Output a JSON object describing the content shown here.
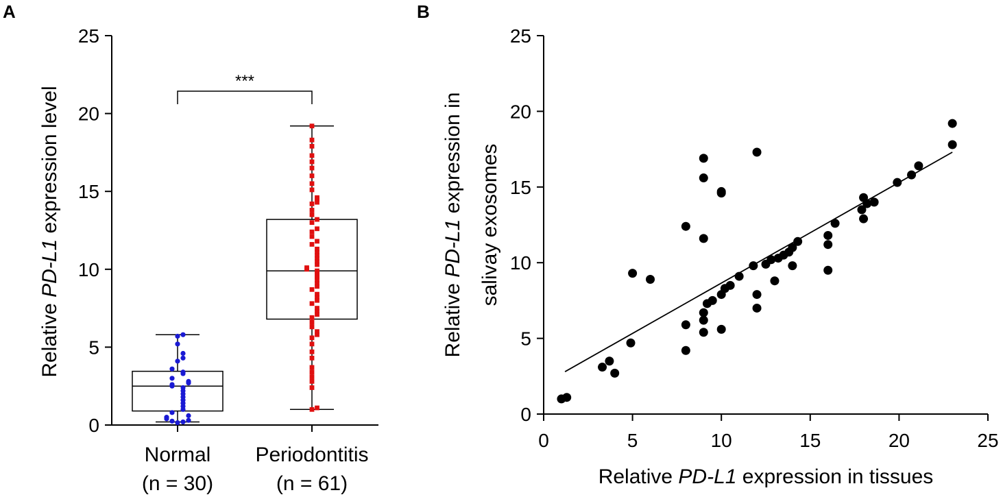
{
  "chart_data": [
    {
      "panel": "A",
      "type": "scatter",
      "subtype": "box-and-dot-plot",
      "ylabel_parts": [
        "Relative ",
        "PD-L1",
        " expression level"
      ],
      "ylim": [
        0,
        25
      ],
      "yticks": [
        "0",
        "5",
        "10",
        "15",
        "20",
        "25"
      ],
      "categories": [
        {
          "label": "Normal",
          "n_label": "(n = 30)"
        },
        {
          "label": "Periodontitis",
          "n_label": "(n = 61)"
        }
      ],
      "significance": "***",
      "groups": [
        {
          "name": "Normal",
          "color": "#1a1ad4",
          "marker": "circle",
          "box": {
            "min": 0.2,
            "q1": 0.9,
            "median": 2.5,
            "q3": 3.45,
            "max": 5.8
          },
          "points": [
            5.8,
            5.7,
            5.2,
            4.6,
            4.3,
            4.1,
            3.6,
            3.4,
            3.3,
            3.0,
            2.8,
            2.7,
            2.6,
            2.5,
            2.4,
            2.2,
            2.0,
            1.8,
            1.6,
            1.4,
            1.2,
            1.0,
            0.8,
            0.6,
            0.5,
            0.4,
            0.3,
            0.25,
            0.2,
            0.15
          ]
        },
        {
          "name": "Periodontitis",
          "color": "#e01010",
          "marker": "square",
          "box": {
            "min": 1.0,
            "q1": 6.8,
            "median": 9.9,
            "q3": 13.2,
            "max": 19.2
          },
          "points": [
            19.2,
            18.3,
            17.9,
            17.3,
            16.9,
            16.5,
            16.0,
            15.5,
            15.1,
            14.6,
            14.5,
            14.3,
            14.2,
            13.8,
            13.5,
            13.2,
            13.0,
            12.6,
            12.4,
            12.1,
            11.8,
            11.6,
            11.3,
            11.1,
            10.9,
            10.7,
            10.5,
            10.3,
            10.1,
            10.0,
            9.9,
            9.8,
            9.6,
            9.5,
            9.3,
            9.1,
            8.9,
            8.7,
            8.4,
            8.2,
            8.0,
            7.8,
            7.5,
            7.3,
            7.1,
            6.9,
            6.6,
            6.3,
            6.0,
            5.8,
            5.6,
            5.2,
            4.7,
            4.3,
            3.7,
            3.4,
            3.1,
            2.8,
            2.4,
            1.1,
            1.0
          ]
        }
      ]
    },
    {
      "panel": "B",
      "type": "scatter",
      "xlabel_parts": [
        "Relative ",
        "PD-L1",
        " expression in tissues"
      ],
      "ylabel_line1_parts": [
        "Relative ",
        "PD-L1",
        " expression in"
      ],
      "ylabel_line2": "salivay exosomes",
      "xlim": [
        0,
        25
      ],
      "ylim": [
        0,
        25
      ],
      "xticks": [
        "0",
        "5",
        "10",
        "15",
        "20",
        "25"
      ],
      "yticks": [
        "0",
        "5",
        "10",
        "15",
        "20",
        "25"
      ],
      "marker_color": "#000000",
      "points": [
        [
          1.0,
          1.0
        ],
        [
          1.3,
          1.1
        ],
        [
          3.3,
          3.1
        ],
        [
          3.7,
          3.5
        ],
        [
          4.0,
          2.7
        ],
        [
          4.9,
          4.7
        ],
        [
          5.0,
          9.3
        ],
        [
          6.0,
          8.9
        ],
        [
          8.0,
          12.4
        ],
        [
          8.0,
          5.9
        ],
        [
          8.0,
          4.2
        ],
        [
          9.0,
          16.9
        ],
        [
          9.0,
          15.6
        ],
        [
          9.0,
          11.6
        ],
        [
          9.0,
          6.7
        ],
        [
          9.0,
          6.2
        ],
        [
          9.0,
          5.4
        ],
        [
          9.2,
          7.3
        ],
        [
          9.5,
          7.5
        ],
        [
          10.0,
          14.7
        ],
        [
          10.0,
          14.6
        ],
        [
          10.0,
          7.9
        ],
        [
          10.0,
          5.6
        ],
        [
          10.2,
          8.3
        ],
        [
          10.5,
          8.5
        ],
        [
          11.0,
          9.1
        ],
        [
          11.8,
          9.8
        ],
        [
          12.0,
          17.3
        ],
        [
          12.0,
          7.9
        ],
        [
          12.0,
          7.0
        ],
        [
          12.5,
          9.9
        ],
        [
          12.8,
          10.2
        ],
        [
          13.0,
          8.8
        ],
        [
          13.2,
          10.3
        ],
        [
          13.5,
          10.5
        ],
        [
          13.8,
          10.7
        ],
        [
          14.0,
          9.8
        ],
        [
          14.0,
          11.0
        ],
        [
          14.3,
          11.4
        ],
        [
          16.0,
          11.8
        ],
        [
          16.0,
          11.2
        ],
        [
          16.0,
          9.5
        ],
        [
          16.4,
          12.6
        ],
        [
          17.9,
          13.5
        ],
        [
          18.0,
          14.3
        ],
        [
          18.0,
          12.9
        ],
        [
          18.2,
          13.9
        ],
        [
          18.6,
          14.0
        ],
        [
          19.9,
          15.3
        ],
        [
          20.7,
          15.8
        ],
        [
          21.1,
          16.4
        ],
        [
          23.0,
          19.2
        ],
        [
          23.0,
          17.8
        ]
      ],
      "regression_line": {
        "x": [
          1.2,
          23.0
        ],
        "y": [
          2.8,
          17.3
        ]
      }
    }
  ]
}
